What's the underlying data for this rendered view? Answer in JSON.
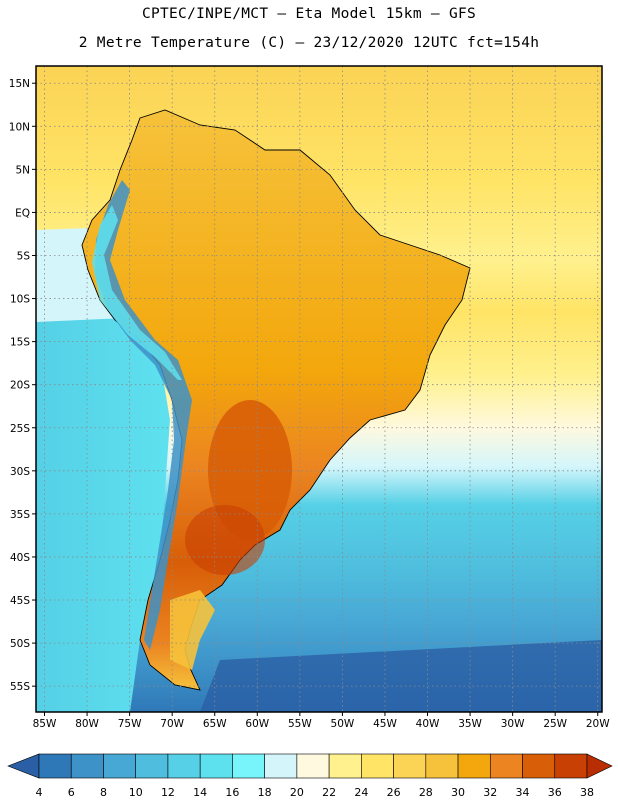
{
  "chart_data": {
    "type": "heatmap",
    "title": "CPTEC/INPE/MCT –  Eta Model 15km – GFS",
    "subtitle": "2 Metre Temperature (C) – 23/12/2020 12UTC fct=154h",
    "y_ticks": [
      "15N",
      "10N",
      "5N",
      "EQ",
      "5S",
      "10S",
      "15S",
      "20S",
      "25S",
      "30S",
      "35S",
      "40S",
      "45S",
      "50S",
      "55S"
    ],
    "y_values": [
      15,
      10,
      5,
      0,
      -5,
      -10,
      -15,
      -20,
      -25,
      -30,
      -35,
      -40,
      -45,
      -50,
      -55
    ],
    "x_ticks": [
      "85W",
      "80W",
      "75W",
      "70W",
      "65W",
      "60W",
      "55W",
      "50W",
      "45W",
      "40W",
      "35W",
      "30W",
      "25W",
      "20W"
    ],
    "x_values": [
      -85,
      -80,
      -75,
      -70,
      -65,
      -60,
      -55,
      -50,
      -45,
      -40,
      -35,
      -30,
      -25,
      -20
    ],
    "lon_range": [
      -86,
      -19.5
    ],
    "lat_range": [
      -58,
      17
    ],
    "colorbar": {
      "labels": [
        "4",
        "6",
        "8",
        "10",
        "12",
        "14",
        "16",
        "18",
        "20",
        "22",
        "24",
        "26",
        "28",
        "30",
        "32",
        "34",
        "36",
        "38"
      ],
      "levels": [
        4,
        6,
        8,
        10,
        12,
        14,
        16,
        18,
        20,
        22,
        24,
        26,
        28,
        30,
        32,
        34,
        36,
        38
      ],
      "colors": [
        "#2b5fa5",
        "#2f78b8",
        "#3d92c8",
        "#48a8d5",
        "#4fbede",
        "#55d0e6",
        "#5ee1ef",
        "#78f4fb",
        "#d4f6fb",
        "#fff9df",
        "#fff18e",
        "#ffe466",
        "#fbd355",
        "#f6c23b",
        "#f3a70c",
        "#eb8421",
        "#d85e07",
        "#c84004",
        "#b92d02"
      ]
    }
  }
}
